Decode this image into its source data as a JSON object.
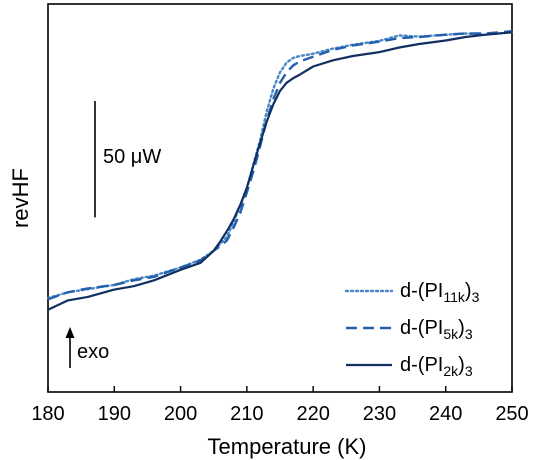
{
  "chart_data": {
    "type": "line",
    "xlabel": "Temperature (K)",
    "ylabel": "revHF",
    "xlim": [
      180,
      250
    ],
    "ylim": [
      0,
      100
    ],
    "xticks": [
      180,
      190,
      200,
      210,
      220,
      230,
      240,
      250
    ],
    "tick_labels": [
      "180",
      "190",
      "200",
      "210",
      "220",
      "230",
      "240",
      "250"
    ],
    "grid": false,
    "legend_position": "bottom-right",
    "scale_bar_label": "50 μW",
    "scale_bar_span": 30,
    "exo_label": "exo",
    "series": [
      {
        "legend": [
          "d-(PI",
          "11k",
          ")",
          "3"
        ],
        "style": "dotted",
        "color": "#4a86c8",
        "x": [
          180,
          183,
          186,
          190,
          193,
          196,
          200,
          203,
          205,
          206,
          207,
          208,
          209,
          210,
          211,
          212,
          213,
          214,
          215,
          216,
          217,
          218,
          220,
          223,
          226,
          230,
          233,
          236,
          240,
          243,
          246,
          250
        ],
        "y": [
          24.2,
          25.7,
          26.5,
          27.6,
          29.1,
          30.0,
          32.1,
          34.1,
          36.4,
          38.2,
          40.0,
          43.9,
          47.9,
          52.4,
          58.8,
          64.9,
          72.3,
          78.2,
          82.4,
          84.9,
          86.1,
          86.6,
          87.2,
          88.5,
          89.5,
          90.5,
          91.9,
          91.6,
          92.1,
          92.4,
          92.1,
          92.7
        ]
      },
      {
        "legend": [
          "d-(PI",
          "5k",
          ")",
          "3"
        ],
        "style": "dashed",
        "color": "#2260ad",
        "x": [
          180,
          183,
          186,
          190,
          193,
          196,
          200,
          203,
          205,
          206,
          207,
          208,
          209,
          210,
          211,
          212,
          213,
          214,
          215,
          216,
          217,
          218,
          220,
          223,
          226,
          230,
          233,
          236,
          240,
          243,
          246,
          250
        ],
        "y": [
          23.9,
          25.7,
          26.7,
          27.6,
          28.8,
          29.7,
          32.1,
          33.9,
          36.4,
          37.6,
          39.1,
          42.4,
          46.1,
          51.5,
          57.0,
          63.3,
          70.0,
          75.5,
          79.7,
          82.4,
          84.2,
          85.2,
          86.4,
          88.2,
          89.3,
          90.3,
          91.2,
          91.5,
          92.1,
          92.4,
          92.4,
          93.0
        ]
      },
      {
        "legend": [
          "d-(PI",
          "2k",
          ")",
          "3"
        ],
        "style": "solid",
        "color": "#12305f",
        "x": [
          180,
          183,
          186,
          190,
          193,
          196,
          200,
          203,
          205,
          206,
          207,
          208,
          209,
          210,
          211,
          212,
          213,
          214,
          215,
          216,
          217,
          218,
          220,
          223,
          226,
          230,
          233,
          236,
          240,
          243,
          246,
          250
        ],
        "y": [
          21.2,
          23.6,
          24.5,
          26.4,
          27.3,
          28.8,
          31.5,
          33.3,
          36.4,
          38.8,
          41.5,
          44.5,
          48.2,
          52.7,
          58.5,
          64.2,
          69.7,
          74.2,
          77.6,
          79.7,
          80.9,
          81.8,
          83.9,
          85.5,
          86.6,
          87.6,
          88.8,
          89.7,
          90.6,
          91.5,
          92.1,
          92.7
        ]
      }
    ]
  }
}
